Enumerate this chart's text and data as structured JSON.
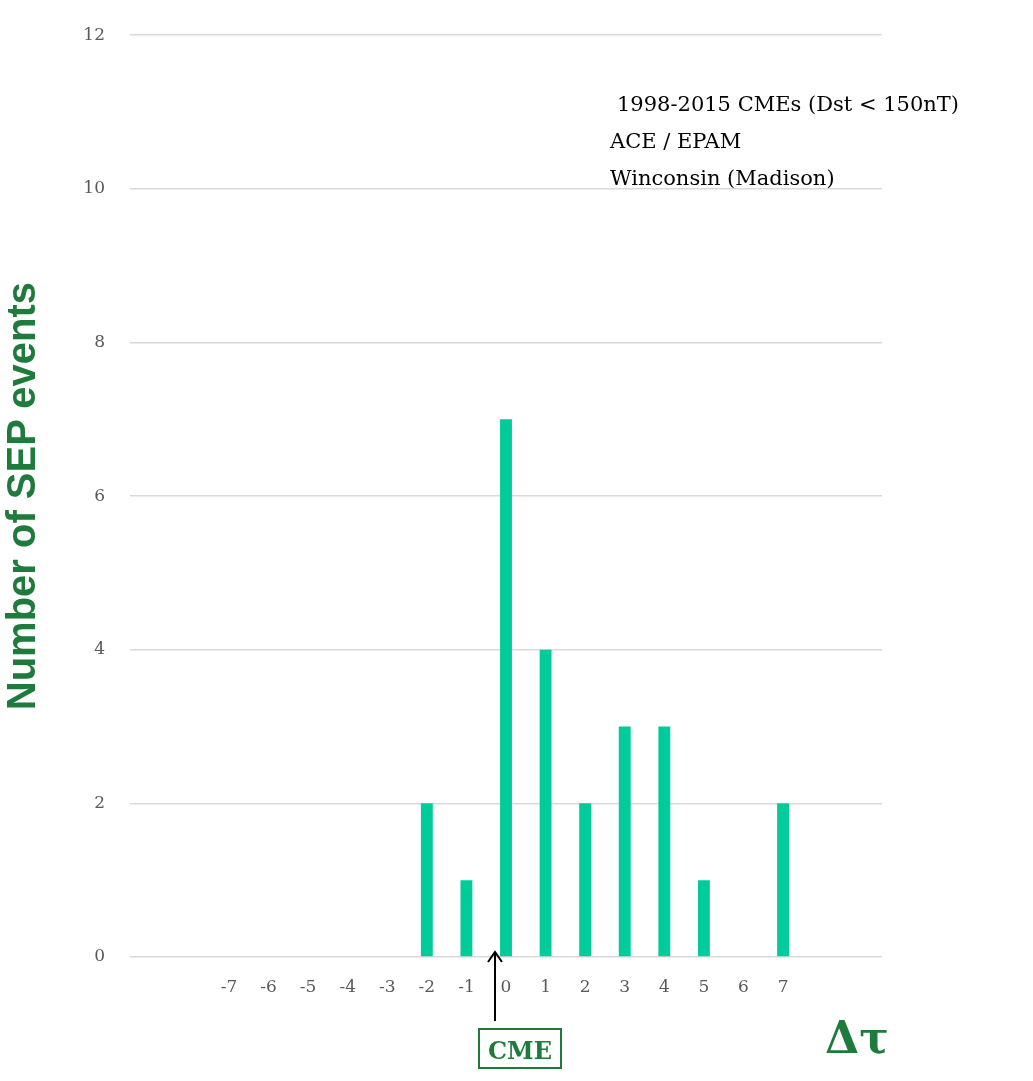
{
  "chart_data": {
    "type": "bar",
    "xlabel": "Δτ",
    "ylabel": "Number of SEP events",
    "categories": [
      null,
      null,
      "-7",
      "-6",
      "-5",
      "-4",
      "-3",
      "-2",
      "-1",
      "0",
      "1",
      "2",
      "3",
      "4",
      "5",
      "6",
      "7",
      null,
      null
    ],
    "values": [
      0,
      0,
      0,
      0,
      0,
      0,
      0,
      2,
      1,
      7,
      4,
      2,
      3,
      3,
      1,
      0,
      2,
      0,
      0
    ],
    "color": "#00cc99",
    "ylim": [
      0,
      12
    ],
    "yticks": [
      0,
      2,
      4,
      6,
      8,
      10,
      12
    ],
    "grid": "y",
    "legend": false,
    "annotations": [
      "1998-2015 CMEs (Dst < 150nT)",
      "ACE / EPAM",
      "Winconsin (Madison)",
      "CME"
    ]
  }
}
